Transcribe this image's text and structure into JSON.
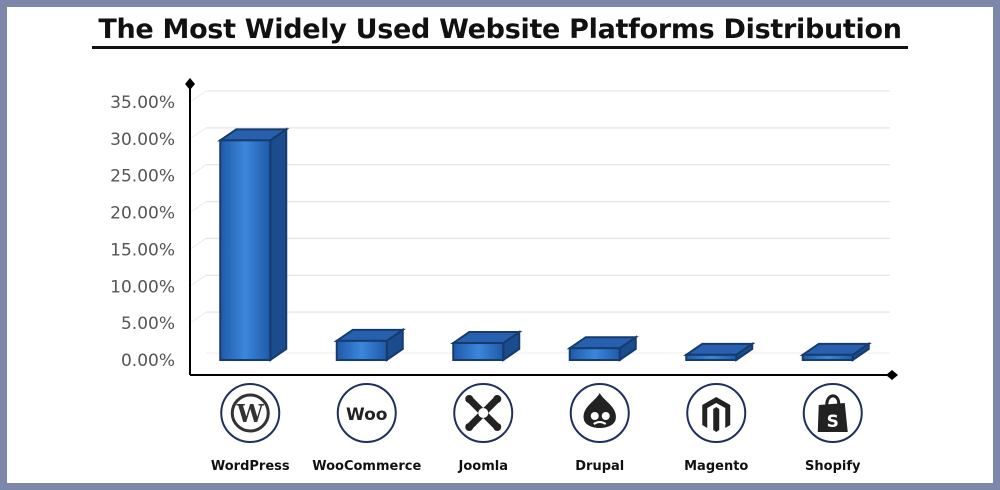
{
  "chart_data": {
    "type": "bar",
    "title": "The Most Widely Used Website Platforms Distribution",
    "xlabel": "",
    "ylabel": "",
    "categories": [
      "WordPress",
      "WooCommerce",
      "Joomla",
      "Drupal",
      "Magento",
      "Shopify"
    ],
    "values": [
      29.8,
      2.6,
      2.3,
      1.6,
      0.7,
      0.7
    ],
    "yticks": [
      "0.00%",
      "5.00%",
      "10.00%",
      "15.00%",
      "20.00%",
      "25.00%",
      "30.00%",
      "35.00%"
    ],
    "ylim": [
      0,
      35
    ],
    "grid": true,
    "legend": "none",
    "bar_style": "3d",
    "colors": {
      "bar_front": "#2e73c8",
      "bar_top": "#2660ae",
      "bar_side": "#1a4c8e",
      "bar_edge": "#163b6e",
      "background_border": "#7d87aa"
    },
    "logos": [
      "wordpress-icon",
      "woo-icon",
      "joomla-icon",
      "drupal-icon",
      "magento-icon",
      "shopify-icon"
    ],
    "logo_texts": {
      "woo": "Woo",
      "wordpress": "W",
      "shopify": "S"
    }
  }
}
